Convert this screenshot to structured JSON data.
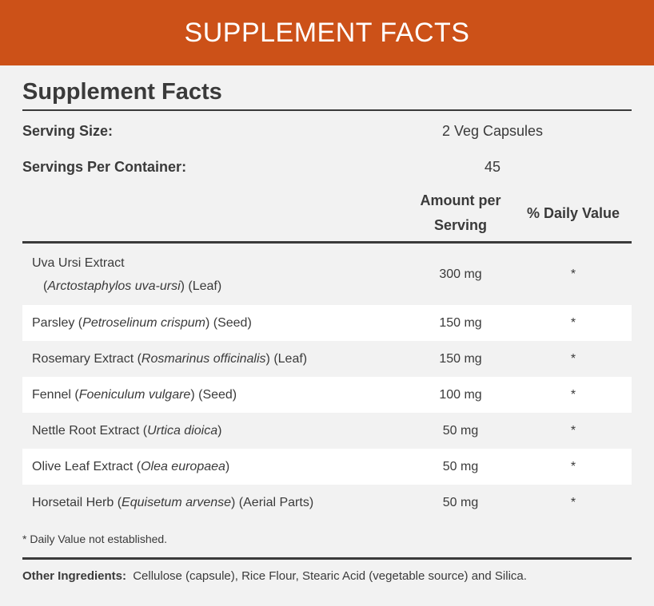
{
  "banner": {
    "title": "SUPPLEMENT FACTS"
  },
  "panel": {
    "title": "Supplement Facts",
    "serving_size_label": "Serving Size:",
    "serving_size_value": "2 Veg Capsules",
    "servings_per_container_label": "Servings Per Container:",
    "servings_per_container_value": "45",
    "col_amount_line1": "Amount per",
    "col_amount_line2": "Serving",
    "col_daily_value": "% Daily Value"
  },
  "ingredients": [
    {
      "name": "Uva Ursi Extract",
      "latin": "Arctostaphylos uva-ursi",
      "part": "(Leaf)",
      "amount": "300 mg",
      "dv": "*"
    },
    {
      "name": "Parsley",
      "latin": "Petroselinum crispum",
      "part": "(Seed)",
      "amount": "150 mg",
      "dv": "*"
    },
    {
      "name": "Rosemary Extract",
      "latin": "Rosmarinus officinalis",
      "part": "(Leaf)",
      "amount": "150 mg",
      "dv": "*"
    },
    {
      "name": "Fennel",
      "latin": "Foeniculum vulgare",
      "part": "(Seed)",
      "amount": "100 mg",
      "dv": "*"
    },
    {
      "name": "Nettle Root Extract",
      "latin": "Urtica dioica",
      "part": "",
      "amount": "50 mg",
      "dv": "*"
    },
    {
      "name": "Olive Leaf Extract",
      "latin": "Olea europaea",
      "part": "",
      "amount": "50 mg",
      "dv": "*"
    },
    {
      "name": "Horsetail Herb",
      "latin": "Equisetum arvense",
      "part": "(Aerial Parts)",
      "amount": "50 mg",
      "dv": "*"
    }
  ],
  "footnote": "* Daily Value not established.",
  "other_ingredients": {
    "label": "Other Ingredients:",
    "text": "Cellulose (capsule), Rice Flour, Stearic Acid (vegetable source) and Silica."
  },
  "colors": {
    "banner": "#cc5118",
    "background": "#f2f2f2",
    "row_alt": "#ffffff"
  }
}
